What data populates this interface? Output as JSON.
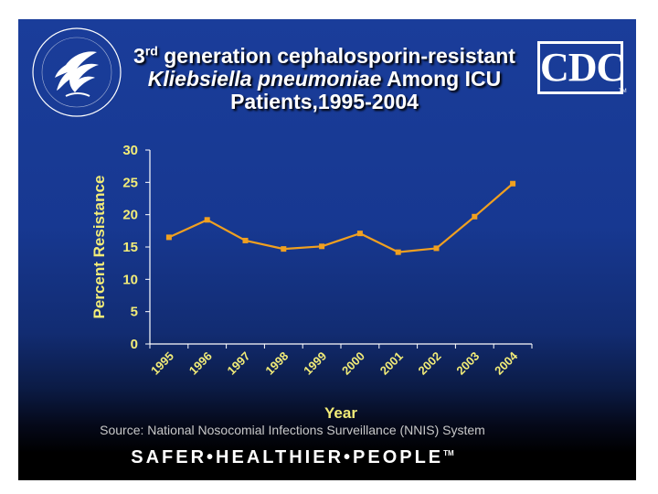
{
  "slide": {
    "title_sup": "rd",
    "title_line1_prefix": "3",
    "title_line1_rest": " generation cephalosporin-resistant",
    "title_line2_italic": "Kliebsiella pneumoniae",
    "title_line2_rest": " Among ICU",
    "title_line3": "Patients,1995-2004",
    "cdc_logo_text": "CDC",
    "cdc_tm": "TM",
    "source": "Source: National Nosocomial Infections Surveillance (NNIS) System",
    "tagline": "SAFER•HEALTHIER•PEOPLE",
    "tagline_tm": "TM"
  },
  "colors": {
    "background_top": "#1a3d9a",
    "series_line": "#f0a020",
    "axis_text": "#f2ec78",
    "axis_line": "#ffffff"
  },
  "chart_data": {
    "type": "line",
    "categories": [
      "1995",
      "1996",
      "1997",
      "1998",
      "1999",
      "2000",
      "2001",
      "2002",
      "2003",
      "2004"
    ],
    "series": [
      {
        "values": [
          16.5,
          19.2,
          16.0,
          14.7,
          15.1,
          17.1,
          14.2,
          14.8,
          19.7,
          24.8
        ]
      }
    ],
    "xlabel": "Year",
    "ylabel": "Percent Resistance",
    "ylim": [
      0,
      30
    ],
    "yticks": [
      0,
      5,
      10,
      15,
      20,
      25,
      30
    ],
    "grid": false,
    "legend": false
  }
}
